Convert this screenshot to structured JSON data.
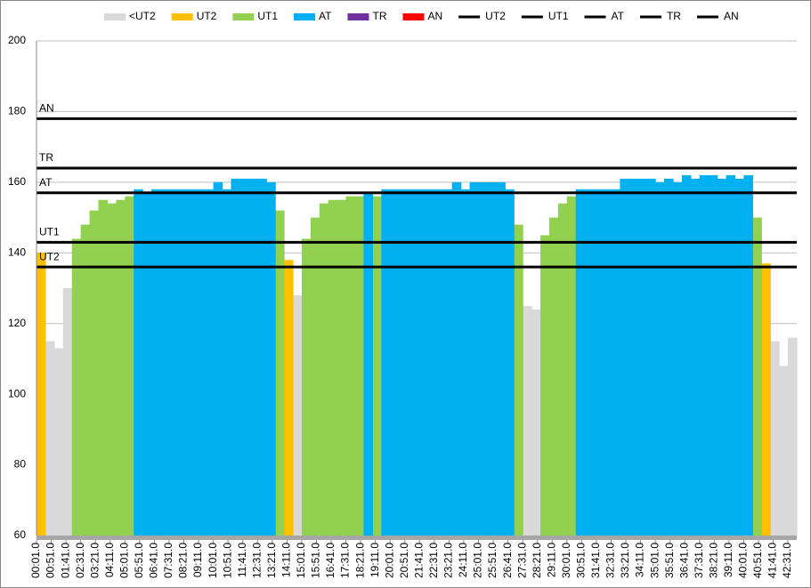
{
  "chart_data": {
    "type": "zone-area",
    "x": [
      1,
      31,
      61,
      91,
      121,
      151,
      181,
      211,
      241,
      271,
      301,
      331,
      361,
      391,
      421,
      451,
      481,
      511,
      541,
      571,
      601,
      631,
      661,
      691,
      721,
      751,
      781,
      811,
      841,
      871,
      901,
      931,
      961,
      991,
      1021,
      1051,
      1081,
      1111,
      1141,
      1171,
      1201,
      1231,
      1261,
      1291,
      1321,
      1351,
      1381,
      1411,
      1441,
      1471,
      1501,
      1531,
      1561,
      1591,
      1621,
      1651,
      1681,
      1711,
      1741,
      1771,
      1801,
      1831,
      1861,
      1891,
      1921,
      1951,
      1981,
      2011,
      2041,
      2071,
      2101,
      2131,
      2161,
      2191,
      2221,
      2251,
      2281,
      2311,
      2341,
      2371,
      2401,
      2431,
      2461,
      2491,
      2521,
      2551
    ],
    "xlim": [
      1,
      2581
    ],
    "xticks": [
      {
        "value": 1,
        "label": "00:01.0"
      },
      {
        "value": 51,
        "label": "00:51.0"
      },
      {
        "value": 101,
        "label": "01:41.0"
      },
      {
        "value": 151,
        "label": "02:31.0"
      },
      {
        "value": 201,
        "label": "03:21.0"
      },
      {
        "value": 251,
        "label": "04:11.0"
      },
      {
        "value": 301,
        "label": "05:01.0"
      },
      {
        "value": 351,
        "label": "05:51.0"
      },
      {
        "value": 401,
        "label": "06:41.0"
      },
      {
        "value": 451,
        "label": "07:31.0"
      },
      {
        "value": 501,
        "label": "08:21.0"
      },
      {
        "value": 551,
        "label": "09:11.0"
      },
      {
        "value": 601,
        "label": "10:01.0"
      },
      {
        "value": 651,
        "label": "10:51.0"
      },
      {
        "value": 701,
        "label": "11:41.0"
      },
      {
        "value": 751,
        "label": "12:31.0"
      },
      {
        "value": 801,
        "label": "13:21.0"
      },
      {
        "value": 851,
        "label": "14:11.0"
      },
      {
        "value": 901,
        "label": "15:01.0"
      },
      {
        "value": 951,
        "label": "15:51.0"
      },
      {
        "value": 1001,
        "label": "16:41.0"
      },
      {
        "value": 1051,
        "label": "17:31.0"
      },
      {
        "value": 1101,
        "label": "18:21.0"
      },
      {
        "value": 1151,
        "label": "19:11.0"
      },
      {
        "value": 1201,
        "label": "20:01.0"
      },
      {
        "value": 1251,
        "label": "20:51.0"
      },
      {
        "value": 1301,
        "label": "21:41.0"
      },
      {
        "value": 1351,
        "label": "22:31.0"
      },
      {
        "value": 1401,
        "label": "23:21.0"
      },
      {
        "value": 1451,
        "label": "24:11.0"
      },
      {
        "value": 1501,
        "label": "25:01.0"
      },
      {
        "value": 1551,
        "label": "25:51.0"
      },
      {
        "value": 1601,
        "label": "26:41.0"
      },
      {
        "value": 1651,
        "label": "27:31.0"
      },
      {
        "value": 1701,
        "label": "28:21.0"
      },
      {
        "value": 1751,
        "label": "29:11.0"
      },
      {
        "value": 1801,
        "label": "30:01.0"
      },
      {
        "value": 1851,
        "label": "30:51.0"
      },
      {
        "value": 1901,
        "label": "31:41.0"
      },
      {
        "value": 1951,
        "label": "32:31.0"
      },
      {
        "value": 2001,
        "label": "33:21.0"
      },
      {
        "value": 2051,
        "label": "34:11.0"
      },
      {
        "value": 2101,
        "label": "35:01.0"
      },
      {
        "value": 2151,
        "label": "35:51.0"
      },
      {
        "value": 2201,
        "label": "36:41.0"
      },
      {
        "value": 2251,
        "label": "37:31.0"
      },
      {
        "value": 2301,
        "label": "38:21.0"
      },
      {
        "value": 2351,
        "label": "39:11.0"
      },
      {
        "value": 2401,
        "label": "40:01.0"
      },
      {
        "value": 2451,
        "label": "40:51.0"
      },
      {
        "value": 2501,
        "label": "41:41.0"
      },
      {
        "value": 2551,
        "label": "42:31.0"
      }
    ],
    "ylim": [
      60,
      200
    ],
    "yticks": [
      60,
      80,
      100,
      120,
      140,
      160,
      180,
      200
    ],
    "grid": true,
    "legend": "top",
    "series": [
      {
        "name": "<UT2",
        "color": "#d9d9d9",
        "values": [
          null,
          115,
          113,
          130,
          null,
          null,
          null,
          null,
          null,
          null,
          null,
          null,
          null,
          null,
          null,
          null,
          null,
          null,
          null,
          null,
          null,
          null,
          null,
          null,
          null,
          null,
          null,
          null,
          null,
          128,
          null,
          null,
          null,
          null,
          null,
          null,
          null,
          null,
          null,
          null,
          null,
          null,
          null,
          null,
          null,
          null,
          null,
          null,
          null,
          null,
          null,
          null,
          null,
          null,
          null,
          125,
          124,
          null,
          null,
          null,
          null,
          null,
          null,
          null,
          null,
          null,
          null,
          null,
          null,
          null,
          null,
          null,
          null,
          null,
          null,
          null,
          null,
          null,
          null,
          null,
          null,
          null,
          null,
          115,
          108,
          116
        ]
      },
      {
        "name": "UT2",
        "color": "#ffc000",
        "values": [
          140,
          null,
          null,
          null,
          null,
          null,
          null,
          null,
          null,
          null,
          null,
          null,
          null,
          null,
          null,
          null,
          null,
          null,
          null,
          null,
          null,
          null,
          null,
          null,
          null,
          null,
          null,
          null,
          138,
          null,
          null,
          null,
          null,
          null,
          null,
          null,
          null,
          null,
          null,
          null,
          null,
          null,
          null,
          null,
          null,
          null,
          null,
          null,
          null,
          null,
          null,
          null,
          null,
          null,
          null,
          null,
          null,
          null,
          null,
          null,
          null,
          null,
          null,
          null,
          null,
          null,
          null,
          null,
          null,
          null,
          null,
          null,
          null,
          null,
          null,
          null,
          null,
          null,
          null,
          null,
          null,
          null,
          137,
          null,
          null,
          null
        ]
      },
      {
        "name": "UT1",
        "color": "#92d050",
        "values": [
          null,
          null,
          null,
          null,
          144,
          148,
          152,
          155,
          154,
          155,
          156,
          null,
          null,
          null,
          null,
          null,
          null,
          null,
          null,
          null,
          null,
          null,
          null,
          null,
          null,
          null,
          null,
          152,
          null,
          null,
          144,
          150,
          154,
          155,
          155,
          156,
          156,
          null,
          156,
          null,
          null,
          null,
          null,
          null,
          null,
          null,
          null,
          null,
          null,
          null,
          null,
          null,
          null,
          null,
          148,
          null,
          null,
          145,
          150,
          154,
          156,
          null,
          null,
          null,
          null,
          null,
          null,
          null,
          null,
          null,
          null,
          null,
          null,
          null,
          null,
          null,
          null,
          null,
          null,
          null,
          null,
          150,
          null,
          null,
          null,
          null
        ]
      },
      {
        "name": "AT",
        "color": "#00b0f0",
        "values": [
          null,
          null,
          null,
          null,
          null,
          null,
          null,
          null,
          null,
          null,
          null,
          158,
          157,
          158,
          158,
          158,
          158,
          158,
          158,
          158,
          160,
          158,
          161,
          161,
          161,
          161,
          160,
          null,
          null,
          null,
          null,
          null,
          null,
          null,
          null,
          null,
          null,
          157,
          null,
          158,
          158,
          158,
          158,
          158,
          158,
          158,
          158,
          160,
          158,
          160,
          160,
          160,
          160,
          158,
          null,
          null,
          null,
          null,
          null,
          null,
          null,
          158,
          158,
          158,
          158,
          158,
          161,
          161,
          161,
          161,
          160,
          161,
          160,
          162,
          161,
          162,
          162,
          161,
          162,
          161,
          162,
          null,
          null,
          null,
          null,
          null
        ]
      },
      {
        "name": "TR",
        "color": "#7030a0",
        "values": [
          null,
          null,
          null,
          null,
          null,
          null,
          null,
          null,
          null,
          null,
          null,
          null,
          null,
          null,
          null,
          null,
          null,
          null,
          null,
          null,
          null,
          null,
          null,
          null,
          null,
          null,
          null,
          null,
          null,
          null,
          null,
          null,
          null,
          null,
          null,
          null,
          null,
          null,
          null,
          null,
          null,
          null,
          null,
          null,
          null,
          null,
          null,
          null,
          null,
          null,
          null,
          null,
          null,
          null,
          null,
          null,
          null,
          null,
          null,
          null,
          null,
          null,
          null,
          null,
          null,
          null,
          null,
          null,
          null,
          null,
          null,
          null,
          null,
          null,
          null,
          null,
          null,
          null,
          null,
          null,
          null,
          null,
          null,
          null,
          null,
          null
        ]
      },
      {
        "name": "AN",
        "color": "#ff0000",
        "values": [
          null,
          null,
          null,
          null,
          null,
          null,
          null,
          null,
          null,
          null,
          null,
          null,
          null,
          null,
          null,
          null,
          null,
          null,
          null,
          null,
          null,
          null,
          null,
          null,
          null,
          null,
          null,
          null,
          null,
          null,
          null,
          null,
          null,
          null,
          null,
          null,
          null,
          null,
          null,
          null,
          null,
          null,
          null,
          null,
          null,
          null,
          null,
          null,
          null,
          null,
          null,
          null,
          null,
          null,
          null,
          null,
          null,
          null,
          null,
          null,
          null,
          null,
          null,
          null,
          null,
          null,
          null,
          null,
          null,
          null,
          null,
          null,
          null,
          null,
          null,
          null,
          null,
          null,
          null,
          null,
          null,
          null,
          null,
          null,
          null,
          null
        ]
      }
    ],
    "lines": [
      {
        "name": "UT2",
        "color": "#000000",
        "value": 136
      },
      {
        "name": "UT1",
        "color": "#000000",
        "value": 143
      },
      {
        "name": "AT",
        "color": "#000000",
        "value": 157
      },
      {
        "name": "TR",
        "color": "#000000",
        "value": 164
      },
      {
        "name": "AN",
        "color": "#000000",
        "value": 178
      }
    ]
  }
}
